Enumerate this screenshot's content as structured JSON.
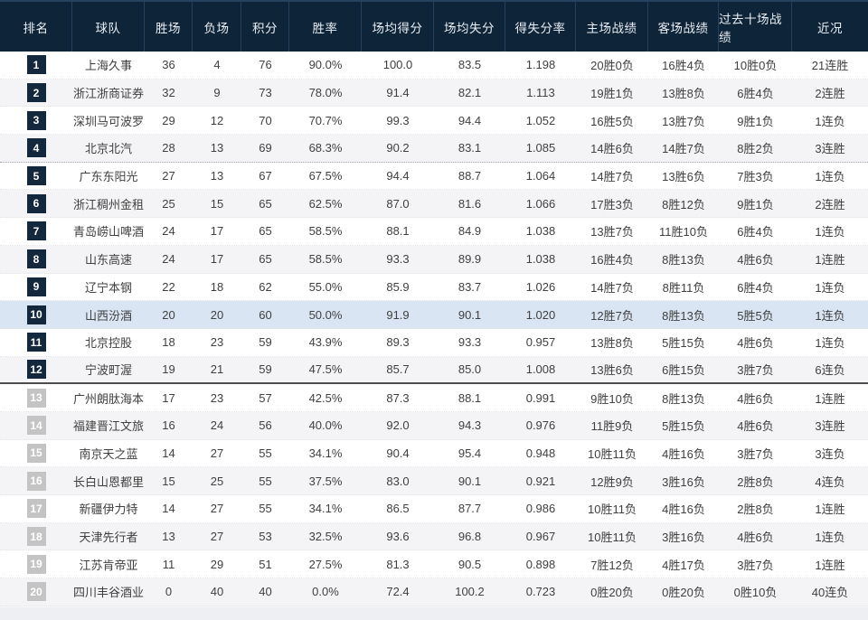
{
  "table": {
    "columns": [
      {
        "key": "rank",
        "label": "排名"
      },
      {
        "key": "team",
        "label": "球队"
      },
      {
        "key": "wins",
        "label": "胜场"
      },
      {
        "key": "losses",
        "label": "负场"
      },
      {
        "key": "points",
        "label": "积分"
      },
      {
        "key": "win_rate",
        "label": "胜率"
      },
      {
        "key": "points_for",
        "label": "场均得分"
      },
      {
        "key": "points_against",
        "label": "场均失分"
      },
      {
        "key": "ratio",
        "label": "得失分率"
      },
      {
        "key": "home_record",
        "label": "主场战绩"
      },
      {
        "key": "away_record",
        "label": "客场战绩"
      },
      {
        "key": "last10_record",
        "label": "过去十场战绩"
      },
      {
        "key": "streak",
        "label": "近况"
      }
    ],
    "dotted_separator_after_rank": 4,
    "solid_separator_after_rank": 12,
    "highlighted_rank": 10,
    "rows": [
      {
        "rank": 1,
        "team": "上海久事",
        "wins": "36",
        "losses": "4",
        "points": "76",
        "win_rate": "90.0%",
        "points_for": "100.0",
        "points_against": "83.5",
        "ratio": "1.198",
        "home_record": "20胜0负",
        "away_record": "16胜4负",
        "last10_record": "10胜0负",
        "streak": "21连胜"
      },
      {
        "rank": 2,
        "team": "浙江浙商证券",
        "wins": "32",
        "losses": "9",
        "points": "73",
        "win_rate": "78.0%",
        "points_for": "91.4",
        "points_against": "82.1",
        "ratio": "1.113",
        "home_record": "19胜1负",
        "away_record": "13胜8负",
        "last10_record": "6胜4负",
        "streak": "2连胜"
      },
      {
        "rank": 3,
        "team": "深圳马可波罗",
        "wins": "29",
        "losses": "12",
        "points": "70",
        "win_rate": "70.7%",
        "points_for": "99.3",
        "points_against": "94.4",
        "ratio": "1.052",
        "home_record": "16胜5负",
        "away_record": "13胜7负",
        "last10_record": "9胜1负",
        "streak": "1连负"
      },
      {
        "rank": 4,
        "team": "北京北汽",
        "wins": "28",
        "losses": "13",
        "points": "69",
        "win_rate": "68.3%",
        "points_for": "90.2",
        "points_against": "83.1",
        "ratio": "1.085",
        "home_record": "14胜6负",
        "away_record": "14胜7负",
        "last10_record": "8胜2负",
        "streak": "3连胜"
      },
      {
        "rank": 5,
        "team": "广东东阳光",
        "wins": "27",
        "losses": "13",
        "points": "67",
        "win_rate": "67.5%",
        "points_for": "94.4",
        "points_against": "88.7",
        "ratio": "1.064",
        "home_record": "14胜7负",
        "away_record": "13胜6负",
        "last10_record": "7胜3负",
        "streak": "1连负"
      },
      {
        "rank": 6,
        "team": "浙江稠州金租",
        "wins": "25",
        "losses": "15",
        "points": "65",
        "win_rate": "62.5%",
        "points_for": "87.0",
        "points_against": "81.6",
        "ratio": "1.066",
        "home_record": "17胜3负",
        "away_record": "8胜12负",
        "last10_record": "9胜1负",
        "streak": "2连胜"
      },
      {
        "rank": 7,
        "team": "青岛崂山啤酒",
        "wins": "24",
        "losses": "17",
        "points": "65",
        "win_rate": "58.5%",
        "points_for": "88.1",
        "points_against": "84.9",
        "ratio": "1.038",
        "home_record": "13胜7负",
        "away_record": "11胜10负",
        "last10_record": "6胜4负",
        "streak": "1连负"
      },
      {
        "rank": 8,
        "team": "山东高速",
        "wins": "24",
        "losses": "17",
        "points": "65",
        "win_rate": "58.5%",
        "points_for": "93.3",
        "points_against": "89.9",
        "ratio": "1.038",
        "home_record": "16胜4负",
        "away_record": "8胜13负",
        "last10_record": "4胜6负",
        "streak": "1连胜"
      },
      {
        "rank": 9,
        "team": "辽宁本钢",
        "wins": "22",
        "losses": "18",
        "points": "62",
        "win_rate": "55.0%",
        "points_for": "85.9",
        "points_against": "83.7",
        "ratio": "1.026",
        "home_record": "14胜7负",
        "away_record": "8胜11负",
        "last10_record": "6胜4负",
        "streak": "1连负"
      },
      {
        "rank": 10,
        "team": "山西汾酒",
        "wins": "20",
        "losses": "20",
        "points": "60",
        "win_rate": "50.0%",
        "points_for": "91.9",
        "points_against": "90.1",
        "ratio": "1.020",
        "home_record": "12胜7负",
        "away_record": "8胜13负",
        "last10_record": "5胜5负",
        "streak": "1连负"
      },
      {
        "rank": 11,
        "team": "北京控股",
        "wins": "18",
        "losses": "23",
        "points": "59",
        "win_rate": "43.9%",
        "points_for": "89.3",
        "points_against": "93.3",
        "ratio": "0.957",
        "home_record": "13胜8负",
        "away_record": "5胜15负",
        "last10_record": "4胜6负",
        "streak": "1连负"
      },
      {
        "rank": 12,
        "team": "宁波町渥",
        "wins": "19",
        "losses": "21",
        "points": "59",
        "win_rate": "47.5%",
        "points_for": "85.7",
        "points_against": "85.0",
        "ratio": "1.008",
        "home_record": "13胜6负",
        "away_record": "6胜15负",
        "last10_record": "3胜7负",
        "streak": "6连负"
      },
      {
        "rank": 13,
        "team": "广州朗肽海本",
        "wins": "17",
        "losses": "23",
        "points": "57",
        "win_rate": "42.5%",
        "points_for": "87.3",
        "points_against": "88.1",
        "ratio": "0.991",
        "home_record": "9胜10负",
        "away_record": "8胜13负",
        "last10_record": "4胜6负",
        "streak": "1连胜"
      },
      {
        "rank": 14,
        "team": "福建晋江文旅",
        "wins": "16",
        "losses": "24",
        "points": "56",
        "win_rate": "40.0%",
        "points_for": "92.0",
        "points_against": "94.3",
        "ratio": "0.976",
        "home_record": "11胜9负",
        "away_record": "5胜15负",
        "last10_record": "4胜6负",
        "streak": "3连胜"
      },
      {
        "rank": 15,
        "team": "南京天之蓝",
        "wins": "14",
        "losses": "27",
        "points": "55",
        "win_rate": "34.1%",
        "points_for": "90.4",
        "points_against": "95.4",
        "ratio": "0.948",
        "home_record": "10胜11负",
        "away_record": "4胜16负",
        "last10_record": "3胜7负",
        "streak": "3连负"
      },
      {
        "rank": 16,
        "team": "长白山恩都里",
        "wins": "15",
        "losses": "25",
        "points": "55",
        "win_rate": "37.5%",
        "points_for": "83.0",
        "points_against": "90.1",
        "ratio": "0.921",
        "home_record": "12胜9负",
        "away_record": "3胜16负",
        "last10_record": "2胜8负",
        "streak": "4连负"
      },
      {
        "rank": 17,
        "team": "新疆伊力特",
        "wins": "14",
        "losses": "27",
        "points": "55",
        "win_rate": "34.1%",
        "points_for": "86.5",
        "points_against": "87.7",
        "ratio": "0.986",
        "home_record": "10胜11负",
        "away_record": "4胜16负",
        "last10_record": "2胜8负",
        "streak": "1连胜"
      },
      {
        "rank": 18,
        "team": "天津先行者",
        "wins": "13",
        "losses": "27",
        "points": "53",
        "win_rate": "32.5%",
        "points_for": "93.6",
        "points_against": "96.8",
        "ratio": "0.967",
        "home_record": "10胜11负",
        "away_record": "3胜16负",
        "last10_record": "4胜6负",
        "streak": "1连负"
      },
      {
        "rank": 19,
        "team": "江苏肯帝亚",
        "wins": "11",
        "losses": "29",
        "points": "51",
        "win_rate": "27.5%",
        "points_for": "81.3",
        "points_against": "90.5",
        "ratio": "0.898",
        "home_record": "7胜12负",
        "away_record": "4胜17负",
        "last10_record": "3胜7负",
        "streak": "1连胜"
      },
      {
        "rank": 20,
        "team": "四川丰谷酒业",
        "wins": "0",
        "losses": "40",
        "points": "40",
        "win_rate": "0.0%",
        "points_for": "72.4",
        "points_against": "100.2",
        "ratio": "0.723",
        "home_record": "0胜20负",
        "away_record": "0胜20负",
        "last10_record": "0胜10负",
        "streak": "40连负"
      }
    ]
  },
  "colors": {
    "header_bg": "#0e2438",
    "header_text": "#e9eef4",
    "badge_dark_bg": "#13273d",
    "badge_gray_bg": "#c4c4c4",
    "badge_text": "#ffffff",
    "row_alt_bg": "#f4f4f6",
    "row_highlight_bg": "#d9e5f2",
    "cell_text": "#404040"
  }
}
